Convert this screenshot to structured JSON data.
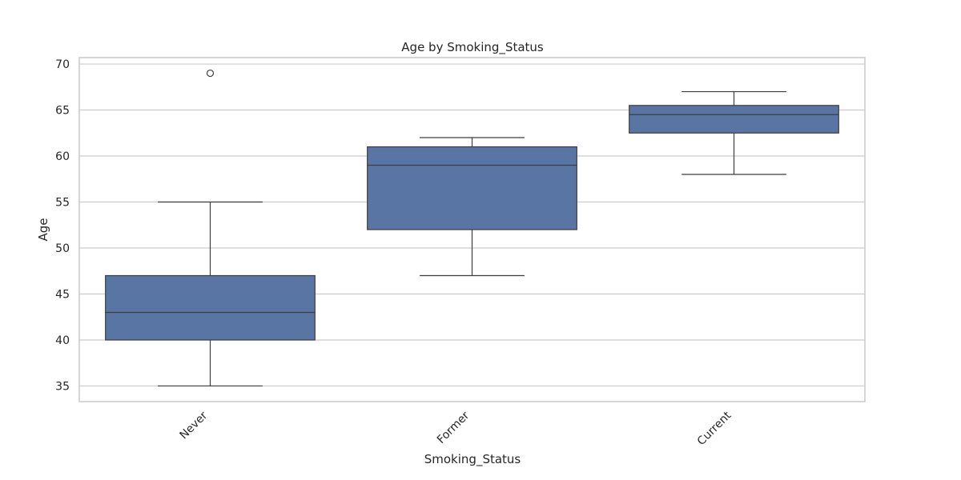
{
  "chart_data": {
    "type": "box",
    "title": "Age by Smoking_Status",
    "xlabel": "Smoking_Status",
    "ylabel": "Age",
    "categories": [
      "Never",
      "Former",
      "Current"
    ],
    "boxes": [
      {
        "category": "Never",
        "whisker_low": 35,
        "q1": 40,
        "median": 43,
        "q3": 47,
        "whisker_high": 55,
        "outliers": [
          69
        ]
      },
      {
        "category": "Former",
        "whisker_low": 47,
        "q1": 52,
        "median": 59,
        "q3": 61,
        "whisker_high": 62,
        "outliers": []
      },
      {
        "category": "Current",
        "whisker_low": 58,
        "q1": 62.5,
        "median": 64.5,
        "q3": 65.5,
        "whisker_high": 67,
        "outliers": []
      }
    ],
    "yticks": [
      "35",
      "40",
      "45",
      "50",
      "55",
      "60",
      "65",
      "70"
    ],
    "ylim": [
      33.3,
      70.7
    ],
    "grid": true,
    "box_color": "#5875a4",
    "line_color": "#3d3d3d",
    "grid_color": "#cccccc"
  }
}
